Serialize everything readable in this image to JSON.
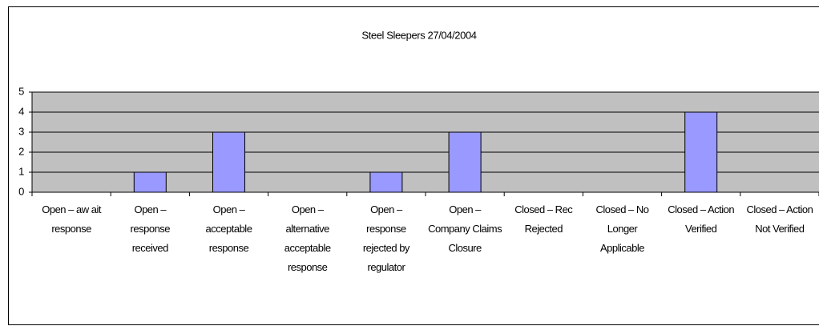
{
  "chart_data": {
    "type": "bar",
    "title": "Steel Sleepers 27/04/2004",
    "categories": [
      "Open – aw ait\nresponse",
      "Open –\nresponse\nreceived",
      "Open –\nacceptable\nresponse",
      "Open –\nalternative\nacceptable\nresponse",
      "Open –\nresponse\nrejected by\nregulator",
      "Open –\nCompany Claims\nClosure",
      "Closed – Rec\nRejected",
      "Closed – No\nLonger\nApplicable",
      "Closed – Action\nVerified",
      "Closed – Action\nNot Verified"
    ],
    "values": [
      0,
      1,
      3,
      0,
      1,
      3,
      0,
      0,
      4,
      0
    ],
    "color": "#9999ff",
    "plot_background": "#c0c0c0",
    "ylim": [
      0,
      5
    ],
    "yticks": [
      0,
      1,
      2,
      3,
      4,
      5
    ],
    "grid": true
  }
}
